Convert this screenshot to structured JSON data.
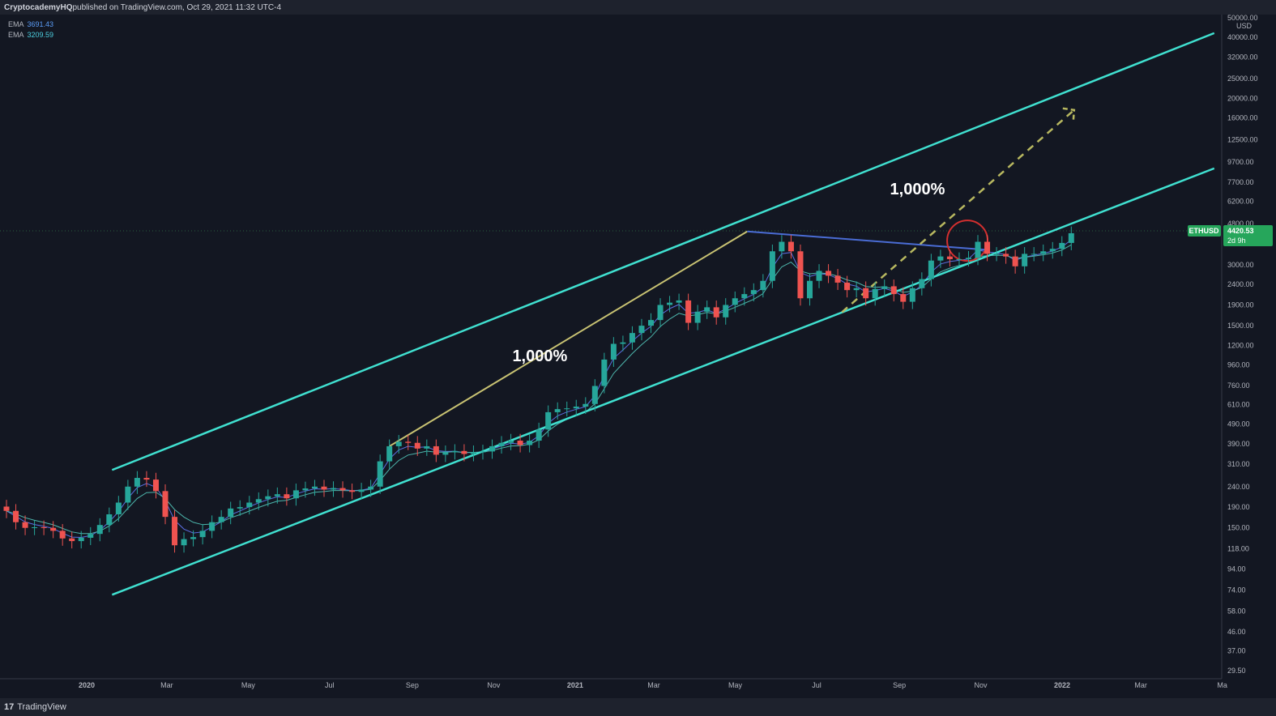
{
  "header": {
    "author": "CryptocademyHQ",
    "text": " published on TradingView.com, Oct 29, 2021 11:32 UTC-4"
  },
  "footer": {
    "brand": "TradingView"
  },
  "indicators": [
    {
      "name": "EMA",
      "value": "3691.43",
      "color": "#5b9cf6"
    },
    {
      "name": "EMA",
      "value": "3209.59",
      "color": "#4dd0e1"
    }
  ],
  "chart_data": {
    "type": "candlestick",
    "symbol": "ETHUSD",
    "currency": "USD",
    "y_scale": "log",
    "ylim": [
      29.5,
      50000
    ],
    "y_ticks": [
      "50000.00",
      "40000.00",
      "32000.00",
      "25000.00",
      "20000.00",
      "16000.00",
      "12500.00",
      "9700.00",
      "7700.00",
      "6200.00",
      "4800.00",
      "3000.00",
      "2400.00",
      "1900.00",
      "1500.00",
      "1200.00",
      "960.00",
      "760.00",
      "610.00",
      "490.00",
      "390.00",
      "310.00",
      "240.00",
      "190.00",
      "150.00",
      "118.00",
      "94.00",
      "74.00",
      "58.00",
      "46.00",
      "37.00",
      "29.50"
    ],
    "x_range": [
      "2019-10-28",
      "2022-04-30"
    ],
    "x_ticks": [
      {
        "date": "2020-01-01",
        "label": "2020",
        "bold": true
      },
      {
        "date": "2020-03-01",
        "label": "Mar"
      },
      {
        "date": "2020-05-01",
        "label": "May"
      },
      {
        "date": "2020-07-01",
        "label": "Jul"
      },
      {
        "date": "2020-09-01",
        "label": "Sep"
      },
      {
        "date": "2020-11-01",
        "label": "Nov"
      },
      {
        "date": "2021-01-01",
        "label": "2021",
        "bold": true
      },
      {
        "date": "2021-03-01",
        "label": "Mar"
      },
      {
        "date": "2021-05-01",
        "label": "May"
      },
      {
        "date": "2021-07-01",
        "label": "Jul"
      },
      {
        "date": "2021-09-01",
        "label": "Sep"
      },
      {
        "date": "2021-11-01",
        "label": "Nov"
      },
      {
        "date": "2022-01-01",
        "label": "2022",
        "bold": true
      },
      {
        "date": "2022-03-01",
        "label": "Mar"
      },
      {
        "date": "2022-05-01",
        "label": "Ma"
      }
    ],
    "weekly_closes": [
      182,
      160,
      150,
      151,
      150,
      145,
      133,
      129,
      134,
      140,
      155,
      175,
      200,
      240,
      265,
      260,
      228,
      170,
      123,
      132,
      135,
      145,
      160,
      170,
      187,
      190,
      200,
      208,
      215,
      220,
      210,
      230,
      235,
      240,
      232,
      236,
      230,
      226,
      232,
      240,
      320,
      380,
      400,
      395,
      370,
      380,
      345,
      355,
      360,
      348,
      355,
      358,
      380,
      395,
      405,
      385,
      405,
      460,
      560,
      580,
      585,
      597,
      615,
      755,
      1020,
      1220,
      1240,
      1380,
      1500,
      1600,
      1900,
      1950,
      2000,
      1550,
      1760,
      1850,
      1650,
      1900,
      2050,
      2150,
      2250,
      2500,
      3500,
      3900,
      3500,
      2050,
      2500,
      2800,
      2650,
      2450,
      2250,
      2300,
      2050,
      2280,
      2350,
      2150,
      1970,
      2300,
      2550,
      3150,
      3300,
      3200,
      3200,
      3250,
      3900,
      3400,
      3400,
      3300,
      2950,
      3400,
      3400,
      3500,
      3600,
      3850,
      4300
    ],
    "current_price": {
      "label": "ETHUSD",
      "value": "4420.53",
      "countdown": "2d 9h"
    },
    "annotations": [
      {
        "text": "1,000%",
        "date": "2020-11-15",
        "price": 1000
      },
      {
        "text": "1,000%",
        "date": "2021-08-25",
        "price": 6700
      }
    ],
    "channel": {
      "upper": {
        "from": [
          "2020-01-20",
          290
        ],
        "to": [
          "2022-04-25",
          42000
        ]
      },
      "lower": {
        "from": [
          "2020-01-20",
          70
        ],
        "to": [
          "2022-04-25",
          9000
        ]
      }
    },
    "trend_line": {
      "from": [
        "2021-05-10",
        4390
      ],
      "to": [
        "2021-11-05",
        3560
      ]
    },
    "colors": {
      "up": "#26a69a",
      "down": "#ef5350",
      "channel": "#40e0d0",
      "ema_fast": "#5b6ee1",
      "ema_slow": "#4db6ac",
      "trend": "#4a6cd4",
      "move_arrow": "#c9c373",
      "projection": "#b8b860",
      "circle": "#d32f2f",
      "price_tag": "#26a65b"
    }
  }
}
